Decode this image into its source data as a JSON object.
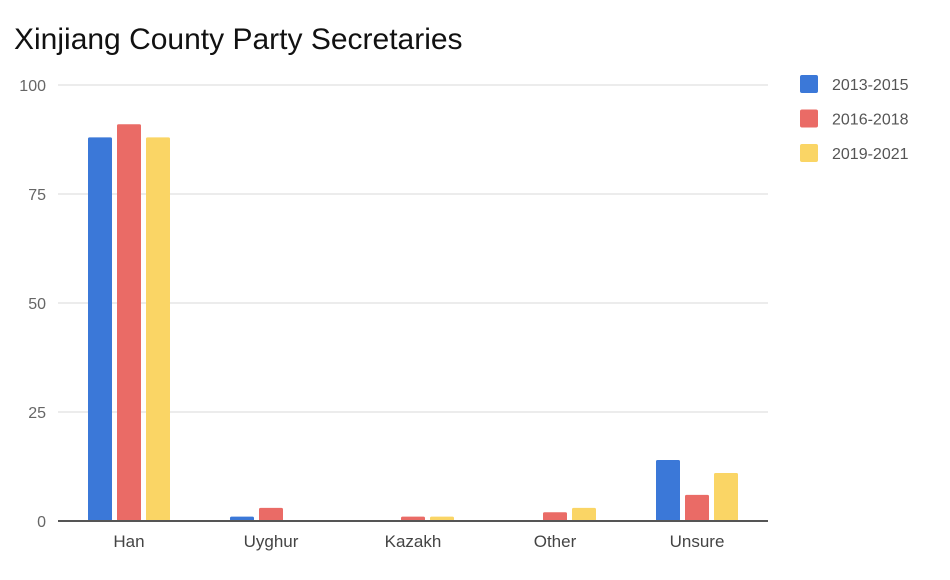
{
  "chart_data": {
    "type": "bar",
    "title": "Xinjiang County Party Secretaries",
    "xlabel": "",
    "ylabel": "",
    "ylim": [
      0,
      100
    ],
    "yticks": [
      0,
      25,
      50,
      75,
      100
    ],
    "grid": true,
    "legend_position": "right",
    "categories": [
      "Han",
      "Uyghur",
      "Kazakh",
      "Other",
      "Unsure"
    ],
    "series": [
      {
        "name": "2013-2015",
        "color": "#3b78d8",
        "values": [
          88,
          1,
          0,
          0,
          14
        ]
      },
      {
        "name": "2016-2018",
        "color": "#ea6b66",
        "values": [
          91,
          3,
          1,
          2,
          6
        ]
      },
      {
        "name": "2019-2021",
        "color": "#fad565",
        "values": [
          88,
          0,
          1,
          3,
          11
        ]
      }
    ]
  }
}
